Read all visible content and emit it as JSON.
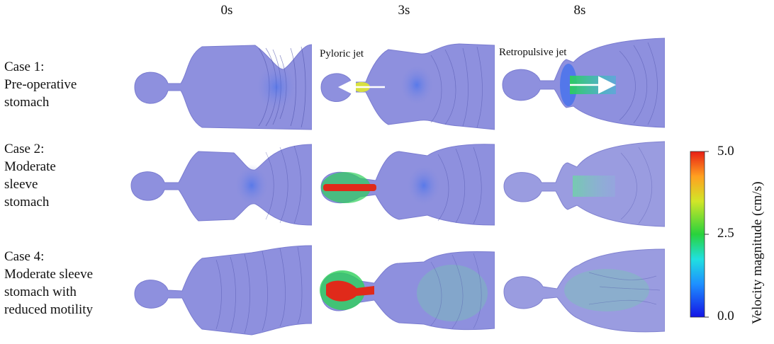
{
  "columns": [
    "0s",
    "3s",
    "8s"
  ],
  "rows": [
    {
      "label_lines": [
        "Case 1:",
        "Pre-operative",
        "stomach"
      ]
    },
    {
      "label_lines": [
        "Case 2:",
        "Moderate",
        "sleeve",
        "stomach"
      ]
    },
    {
      "label_lines": [
        "Case 4:",
        "Moderate sleeve",
        "stomach with",
        "reduced motility"
      ]
    }
  ],
  "annotations": {
    "pyloric_jet": "Pyloric jet",
    "retropulsive_jet": "Retropulsive jet"
  },
  "colorbar": {
    "title": "Velocity magnitude (cm/s)",
    "ticks": [
      "5.0",
      "2.5",
      "0.0"
    ],
    "min": 0.0,
    "max": 5.0,
    "colors": [
      "#1414e6",
      "#1e90ff",
      "#20e0e0",
      "#28d23c",
      "#d2e628",
      "#ffa020",
      "#e81e14"
    ]
  },
  "colors": {
    "tissue": "#8e90de",
    "contour": "#4a4ea8",
    "jet_red": "#e02a1a",
    "jet_green": "#3cd23c"
  }
}
